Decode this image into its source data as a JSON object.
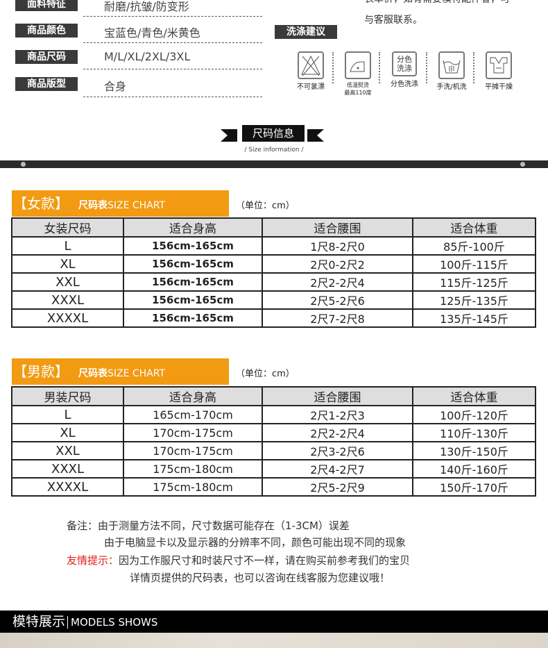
{
  "attributes": [
    {
      "label": "面料特征",
      "value": "耐磨/抗皱/防变形"
    },
    {
      "label": "商品颜色",
      "value": "宝蓝色/青色/米黄色"
    },
    {
      "label": "商品尺码",
      "value": "M/L/XL/2XL/3XL"
    },
    {
      "label": "商品版型",
      "value": "合身"
    }
  ],
  "right_note": {
    "line1": "衣单价，如有需要模特配件者，可",
    "line2": "与客服联系。"
  },
  "wash": {
    "title": "洗涤建议",
    "items": [
      {
        "icon": "no-bleach-icon",
        "label": "不可氯漂"
      },
      {
        "icon": "low-iron-icon",
        "label": "低温熨烫",
        "label2": "最高110度"
      },
      {
        "icon": "separate-wash-icon",
        "icon_text": "分色洗涤",
        "label": "分色洗涤"
      },
      {
        "icon": "hand-machine-wash-icon",
        "label": "手洗/机洗"
      },
      {
        "icon": "flat-dry-icon",
        "label": "平摊干燥"
      }
    ]
  },
  "size_info": {
    "title": "尺码信息",
    "subtitle": "/ Size information /"
  },
  "colors": {
    "accent": "#f29a12",
    "dark": "#111111"
  },
  "women": {
    "tag": "【女款】",
    "chart_cn": "尺码表",
    "chart_en": "SIZE CHART",
    "unit": "（单位：cm）",
    "headers": [
      "女装尺码",
      "适合身高",
      "适合腰围",
      "适合体重"
    ],
    "rows": [
      [
        "L",
        "156cm-165cm",
        "1尺8-2尺0",
        "85斤-100斤"
      ],
      [
        "XL",
        "156cm-165cm",
        "2尺0-2尺2",
        "100斤-115斤"
      ],
      [
        "XXL",
        "156cm-165cm",
        "2尺2-2尺4",
        "115斤-125斤"
      ],
      [
        "XXXL",
        "156cm-165cm",
        "2尺5-2尺6",
        "125斤-135斤"
      ],
      [
        "XXXXL",
        "156cm-165cm",
        "2尺7-2尺8",
        "135斤-145斤"
      ]
    ]
  },
  "men": {
    "tag": "【男款】",
    "chart_cn": "尺码表",
    "chart_en": "SIZE CHART",
    "unit": "（单位：cm）",
    "headers": [
      "男装尺码",
      "适合身高",
      "适合腰围",
      "适合体重"
    ],
    "rows": [
      [
        "L",
        "165cm-170cm",
        "2尺1-2尺3",
        "100斤-120斤"
      ],
      [
        "XL",
        "170cm-175cm",
        "2尺2-2尺4",
        "110斤-130斤"
      ],
      [
        "XXL",
        "170cm-175cm",
        "2尺3-2尺6",
        "130斤-150斤"
      ],
      [
        "XXXL",
        "175cm-180cm",
        "2尺4-2尺7",
        "140斤-160斤"
      ],
      [
        "XXXXL",
        "175cm-180cm",
        "2尺5-2尺9",
        "150斤-170斤"
      ]
    ]
  },
  "notes": {
    "line1": "备注：由于测量方法不同，尺寸数据可能存在（1-3CM）误差",
    "line2": "由于电脑显卡以及显示器的分辨率不同，颜色可能出现不同的现象",
    "tip_label": "友情提示：",
    "line3": "因为工作服尺寸和时装尺寸不一样，请在购买前参考我们的宝贝",
    "line4": "详情页提供的尺码表，也可以咨询在线客服为您建议哦！"
  },
  "models": {
    "cn": "模特展示",
    "en": "MODELS SHOWS"
  }
}
